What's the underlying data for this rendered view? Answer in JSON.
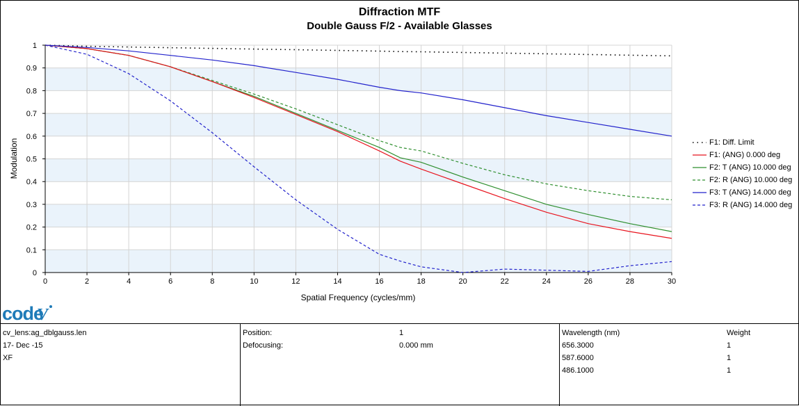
{
  "colors": {
    "black": "#000000",
    "red": "#e8141e",
    "green": "#2f8f2f",
    "blue": "#2222cc",
    "band": "#eaf3fb"
  },
  "chart_data": {
    "type": "line",
    "title": "Diffraction MTF",
    "subtitle": "Double Gauss F/2 -  Available Glasses",
    "xlabel": "Spatial Frequency (cycles/mm)",
    "ylabel": "Modulation",
    "xlim": [
      0,
      30
    ],
    "ylim": [
      0,
      1
    ],
    "xticks": [
      "0",
      "2",
      "4",
      "6",
      "8",
      "10",
      "12",
      "14",
      "16",
      "18",
      "20",
      "22",
      "24",
      "26",
      "28",
      "30"
    ],
    "yticks": [
      "0",
      "0.1",
      "0.2",
      "0.3",
      "0.4",
      "0.5",
      "0.6",
      "0.7",
      "0.8",
      "0.9",
      "1"
    ],
    "grid": true,
    "legend_position": "right",
    "x": [
      0,
      2,
      4,
      6,
      8,
      10,
      12,
      14,
      16,
      17,
      18,
      20,
      22,
      24,
      26,
      28,
      30
    ],
    "series": [
      {
        "name": "F1: Diff. Limit",
        "color": "#000000",
        "style": "dotted",
        "values": [
          1.0,
          0.995,
          0.992,
          0.989,
          0.986,
          0.983,
          0.98,
          0.977,
          0.974,
          0.972,
          0.971,
          0.968,
          0.965,
          0.962,
          0.959,
          0.956,
          0.953
        ]
      },
      {
        "name": "F1: (ANG) 0.000 deg",
        "color": "#e8141e",
        "style": "solid",
        "values": [
          1.0,
          0.985,
          0.955,
          0.905,
          0.84,
          0.77,
          0.695,
          0.62,
          0.535,
          0.49,
          0.455,
          0.39,
          0.325,
          0.265,
          0.215,
          0.18,
          0.15
        ]
      },
      {
        "name": "F2: T (ANG) 10.000 deg",
        "color": "#2f8f2f",
        "style": "solid",
        "values": [
          1.0,
          0.985,
          0.955,
          0.905,
          0.84,
          0.775,
          0.7,
          0.625,
          0.55,
          0.505,
          0.485,
          0.42,
          0.36,
          0.3,
          0.255,
          0.215,
          0.18
        ]
      },
      {
        "name": "F2: R (ANG) 10.000 deg",
        "color": "#2f8f2f",
        "style": "dashed",
        "values": [
          1.0,
          0.985,
          0.955,
          0.905,
          0.845,
          0.785,
          0.72,
          0.65,
          0.58,
          0.55,
          0.535,
          0.48,
          0.43,
          0.39,
          0.36,
          0.335,
          0.32
        ]
      },
      {
        "name": "F3: T (ANG) 14.000 deg",
        "color": "#2222cc",
        "style": "solid",
        "values": [
          1.0,
          0.99,
          0.975,
          0.955,
          0.935,
          0.91,
          0.88,
          0.85,
          0.815,
          0.8,
          0.79,
          0.76,
          0.725,
          0.69,
          0.66,
          0.63,
          0.6
        ]
      },
      {
        "name": "F3: R (ANG) 14.000 deg",
        "color": "#2222cc",
        "style": "dashed",
        "values": [
          1.0,
          0.96,
          0.875,
          0.755,
          0.615,
          0.465,
          0.32,
          0.19,
          0.08,
          0.05,
          0.025,
          0.0,
          0.015,
          0.01,
          0.005,
          0.03,
          0.048
        ]
      }
    ]
  },
  "logo_text": "code V",
  "info": {
    "lens_file": "cv_lens:ag_dblgauss.len",
    "date": "17- Dec -15",
    "field_type": "XF",
    "position_label": "Position:",
    "position_value": "1",
    "defocusing_label": "Defocusing:",
    "defocusing_value": "0.000 mm",
    "wavelength_header": "Wavelength (nm)",
    "weight_header": "Weight",
    "wavelengths": [
      "656.3000",
      "587.6000",
      "486.1000"
    ],
    "weights": [
      "1",
      "1",
      "1"
    ]
  }
}
